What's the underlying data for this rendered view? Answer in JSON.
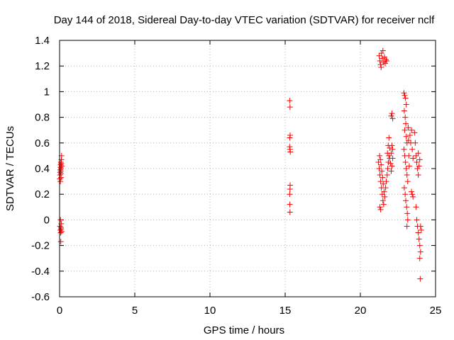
{
  "chart_data": {
    "type": "scatter",
    "title": "Day 144 of 2018, Sidereal Day-to-day VTEC variation (SDTVAR) for receiver nclf",
    "xlabel": "GPS time / hours",
    "ylabel": "SDTVAR / TECUs",
    "xlim": [
      0,
      25
    ],
    "ylim": [
      -0.6,
      1.4
    ],
    "xticks": [
      "0",
      "5",
      "10",
      "15",
      "20",
      "25"
    ],
    "yticks": [
      "-0.6",
      "-0.4",
      "-0.2",
      "0",
      "0.2",
      "0.4",
      "0.6",
      "0.8",
      "1",
      "1.2",
      "1.4"
    ],
    "grid": true,
    "marker": "+",
    "color": "#ff0000",
    "series": [
      {
        "name": "SDTVAR",
        "points": [
          [
            0.02,
            0.32
          ],
          [
            0.03,
            0.35
          ],
          [
            0.04,
            0.37
          ],
          [
            0.05,
            0.39
          ],
          [
            0.06,
            0.41
          ],
          [
            0.07,
            0.43
          ],
          [
            0.08,
            0.38
          ],
          [
            0.09,
            0.36
          ],
          [
            0.1,
            0.4
          ],
          [
            0.11,
            0.44
          ],
          [
            0.12,
            0.47
          ],
          [
            0.13,
            0.5
          ],
          [
            0.14,
            0.42
          ],
          [
            0.05,
            0.3
          ],
          [
            0.08,
            0.45
          ],
          [
            0.1,
            0.33
          ],
          [
            0.03,
            -0.05
          ],
          [
            0.05,
            -0.08
          ],
          [
            0.07,
            -0.1
          ],
          [
            0.09,
            -0.06
          ],
          [
            0.11,
            -0.03
          ],
          [
            0.13,
            -0.09
          ],
          [
            0.06,
            0.0
          ],
          [
            0.1,
            -0.07
          ],
          [
            0.08,
            -0.17
          ],
          [
            15.3,
            0.93
          ],
          [
            15.32,
            0.88
          ],
          [
            15.33,
            0.66
          ],
          [
            15.31,
            0.64
          ],
          [
            15.3,
            0.57
          ],
          [
            15.32,
            0.55
          ],
          [
            15.34,
            0.53
          ],
          [
            15.33,
            0.27
          ],
          [
            15.32,
            0.24
          ],
          [
            15.3,
            0.2
          ],
          [
            15.31,
            0.12
          ],
          [
            15.32,
            0.06
          ],
          [
            21.25,
            1.28
          ],
          [
            21.3,
            1.24
          ],
          [
            21.35,
            1.21
          ],
          [
            21.4,
            1.3
          ],
          [
            21.45,
            1.26
          ],
          [
            21.5,
            1.32
          ],
          [
            21.55,
            1.23
          ],
          [
            21.6,
            1.27
          ],
          [
            21.65,
            1.22
          ],
          [
            21.7,
            1.25
          ],
          [
            21.75,
            1.24
          ],
          [
            21.38,
            1.19
          ],
          [
            21.2,
            0.45
          ],
          [
            21.25,
            0.4
          ],
          [
            21.3,
            0.35
          ],
          [
            21.35,
            0.3
          ],
          [
            21.4,
            0.25
          ],
          [
            21.45,
            0.2
          ],
          [
            21.5,
            0.15
          ],
          [
            21.55,
            0.12
          ],
          [
            21.28,
            0.5
          ],
          [
            21.33,
            0.47
          ],
          [
            21.38,
            0.43
          ],
          [
            21.42,
            0.38
          ],
          [
            21.48,
            0.33
          ],
          [
            21.52,
            0.28
          ],
          [
            21.58,
            0.22
          ],
          [
            21.62,
            0.18
          ],
          [
            21.68,
            0.25
          ],
          [
            21.72,
            0.3
          ],
          [
            21.78,
            0.35
          ],
          [
            21.82,
            0.4
          ],
          [
            21.86,
            0.45
          ],
          [
            21.9,
            0.5
          ],
          [
            21.95,
            0.48
          ],
          [
            22.0,
            0.44
          ],
          [
            21.3,
            0.1
          ],
          [
            21.35,
            0.08
          ],
          [
            21.8,
            0.52
          ],
          [
            21.85,
            0.58
          ],
          [
            21.9,
            0.64
          ],
          [
            21.95,
            0.56
          ],
          [
            22.05,
            0.52
          ],
          [
            22.1,
            0.58
          ],
          [
            22.15,
            0.55
          ],
          [
            22.1,
            0.42
          ],
          [
            22.05,
            0.38
          ],
          [
            22.15,
            0.48
          ],
          [
            22.05,
            0.81
          ],
          [
            22.1,
            0.83
          ],
          [
            22.15,
            0.79
          ],
          [
            22.9,
            0.99
          ],
          [
            22.95,
            0.97
          ],
          [
            23.0,
            0.95
          ],
          [
            23.05,
            0.9
          ],
          [
            22.92,
            0.85
          ],
          [
            22.98,
            0.8
          ],
          [
            23.02,
            0.75
          ],
          [
            22.95,
            0.7
          ],
          [
            23.05,
            0.65
          ],
          [
            23.1,
            0.6
          ],
          [
            22.9,
            0.55
          ],
          [
            22.95,
            0.5
          ],
          [
            23.0,
            0.45
          ],
          [
            23.05,
            0.4
          ],
          [
            23.1,
            0.35
          ],
          [
            23.15,
            0.3
          ],
          [
            22.92,
            0.25
          ],
          [
            22.98,
            0.2
          ],
          [
            23.02,
            0.15
          ],
          [
            23.08,
            0.1
          ],
          [
            23.12,
            0.05
          ],
          [
            23.15,
            0.0
          ],
          [
            23.1,
            -0.05
          ],
          [
            23.18,
            0.72
          ],
          [
            23.2,
            0.62
          ],
          [
            23.22,
            0.5
          ],
          [
            23.25,
            0.42
          ],
          [
            23.3,
            0.66
          ],
          [
            23.35,
            0.6
          ],
          [
            23.4,
            0.7
          ],
          [
            23.45,
            0.55
          ],
          [
            23.5,
            0.48
          ],
          [
            23.4,
            0.22
          ],
          [
            23.45,
            0.2
          ],
          [
            23.5,
            0.18
          ],
          [
            23.6,
            0.68
          ],
          [
            23.65,
            0.6
          ],
          [
            23.7,
            0.5
          ],
          [
            23.75,
            0.45
          ],
          [
            23.8,
            0.4
          ],
          [
            23.85,
            0.35
          ],
          [
            23.7,
            0.1
          ],
          [
            23.75,
            0.0
          ],
          [
            23.8,
            -0.05
          ],
          [
            23.85,
            -0.1
          ],
          [
            23.9,
            -0.15
          ],
          [
            23.95,
            -0.2
          ],
          [
            24.0,
            -0.25
          ],
          [
            23.95,
            -0.3
          ],
          [
            24.0,
            -0.05
          ],
          [
            24.05,
            -0.08
          ],
          [
            23.9,
            0.42
          ],
          [
            23.95,
            0.47
          ],
          [
            23.85,
            0.52
          ],
          [
            23.98,
            -0.46
          ]
        ]
      }
    ]
  }
}
